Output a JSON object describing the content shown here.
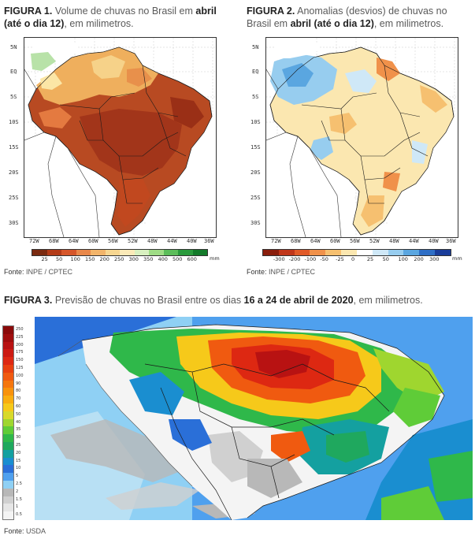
{
  "fig1": {
    "label": "FIGURA 1.",
    "text_a": " Volume de chuvas no Brasil em ",
    "bold_a": "abril",
    "line2_bold": "(até o dia 12)",
    "line2_text": ", em milimetros.",
    "source_label": "Fonte:",
    "source_value": " INPE / CPTEC",
    "lat_labels": [
      "5N",
      "EQ",
      "5S",
      "10S",
      "15S",
      "20S",
      "25S",
      "30S"
    ],
    "lon_labels": [
      "72W",
      "68W",
      "64W",
      "60W",
      "56W",
      "52W",
      "48W",
      "44W",
      "40W",
      "36W"
    ],
    "colorbar_labels": [
      "25",
      "50",
      "100",
      "150",
      "200",
      "250",
      "300",
      "350",
      "400",
      "500",
      "600"
    ],
    "colorbar_unit": "mm",
    "colorbar_colors": [
      "#7a2a10",
      "#b33b18",
      "#d6562a",
      "#e9884a",
      "#f2b46a",
      "#f7d690",
      "#fbeab8",
      "#d8f0c0",
      "#9fdc86",
      "#5cbd5a",
      "#2a9a3c",
      "#137a2a"
    ]
  },
  "fig2": {
    "label": "FIGURA 2.",
    "text_a": " Anomalias (desvios) de chuvas no",
    "line2_text_a": "Brasil em ",
    "line2_bold": "abril (até o dia 12)",
    "line2_text_b": ", em milimetros.",
    "source_label": "Fonte:",
    "source_value": " INPE / CPTEC",
    "lat_labels": [
      "5N",
      "EQ",
      "5S",
      "10S",
      "15S",
      "20S",
      "25S",
      "30S"
    ],
    "lon_labels": [
      "72W",
      "68W",
      "64W",
      "60W",
      "56W",
      "52W",
      "48W",
      "44W",
      "40W",
      "36W"
    ],
    "colorbar_labels": [
      "-300",
      "-200",
      "-100",
      "-50",
      "-25",
      "0",
      "25",
      "50",
      "100",
      "200",
      "300"
    ],
    "colorbar_unit": "mm",
    "colorbar_colors": [
      "#8a1e0c",
      "#c0361a",
      "#e05a28",
      "#f0914a",
      "#f6c070",
      "#fbe7b0",
      "#ffffff",
      "#cfe8f7",
      "#97cdef",
      "#5aa6e0",
      "#2f6fc6",
      "#1a3d9a"
    ]
  },
  "fig3": {
    "label": "FIGURA 3.",
    "text_a": " Previsão de chuvas no Brasil entre os dias ",
    "bold_a": "16 a 24 de abril de 2020",
    "text_b": ", em milimetros.",
    "source_label": "Fonte:",
    "source_value": " USDA",
    "scale_labels": [
      "250",
      "225",
      "200",
      "175",
      "150",
      "125",
      "100",
      "90",
      "80",
      "70",
      "60",
      "50",
      "40",
      "35",
      "30",
      "25",
      "20",
      "15",
      "10",
      "5",
      "2.5",
      "2",
      "1.5",
      "1",
      "0.5"
    ],
    "scale_colors": [
      "#8a0a0a",
      "#a00d0d",
      "#b81212",
      "#cc1a12",
      "#dd2812",
      "#e8400f",
      "#f05a10",
      "#f5760e",
      "#f8920c",
      "#f9ad10",
      "#f6c91a",
      "#d8d92a",
      "#9fd62f",
      "#5fcc38",
      "#2fb84a",
      "#1fa85e",
      "#14a0a0",
      "#1a8ed0",
      "#2a6fd8",
      "#4fa0ee",
      "#8fd0f4",
      "#b8b8b8",
      "#d0d0d0",
      "#e6e6e6",
      "#f4f4f4"
    ]
  }
}
